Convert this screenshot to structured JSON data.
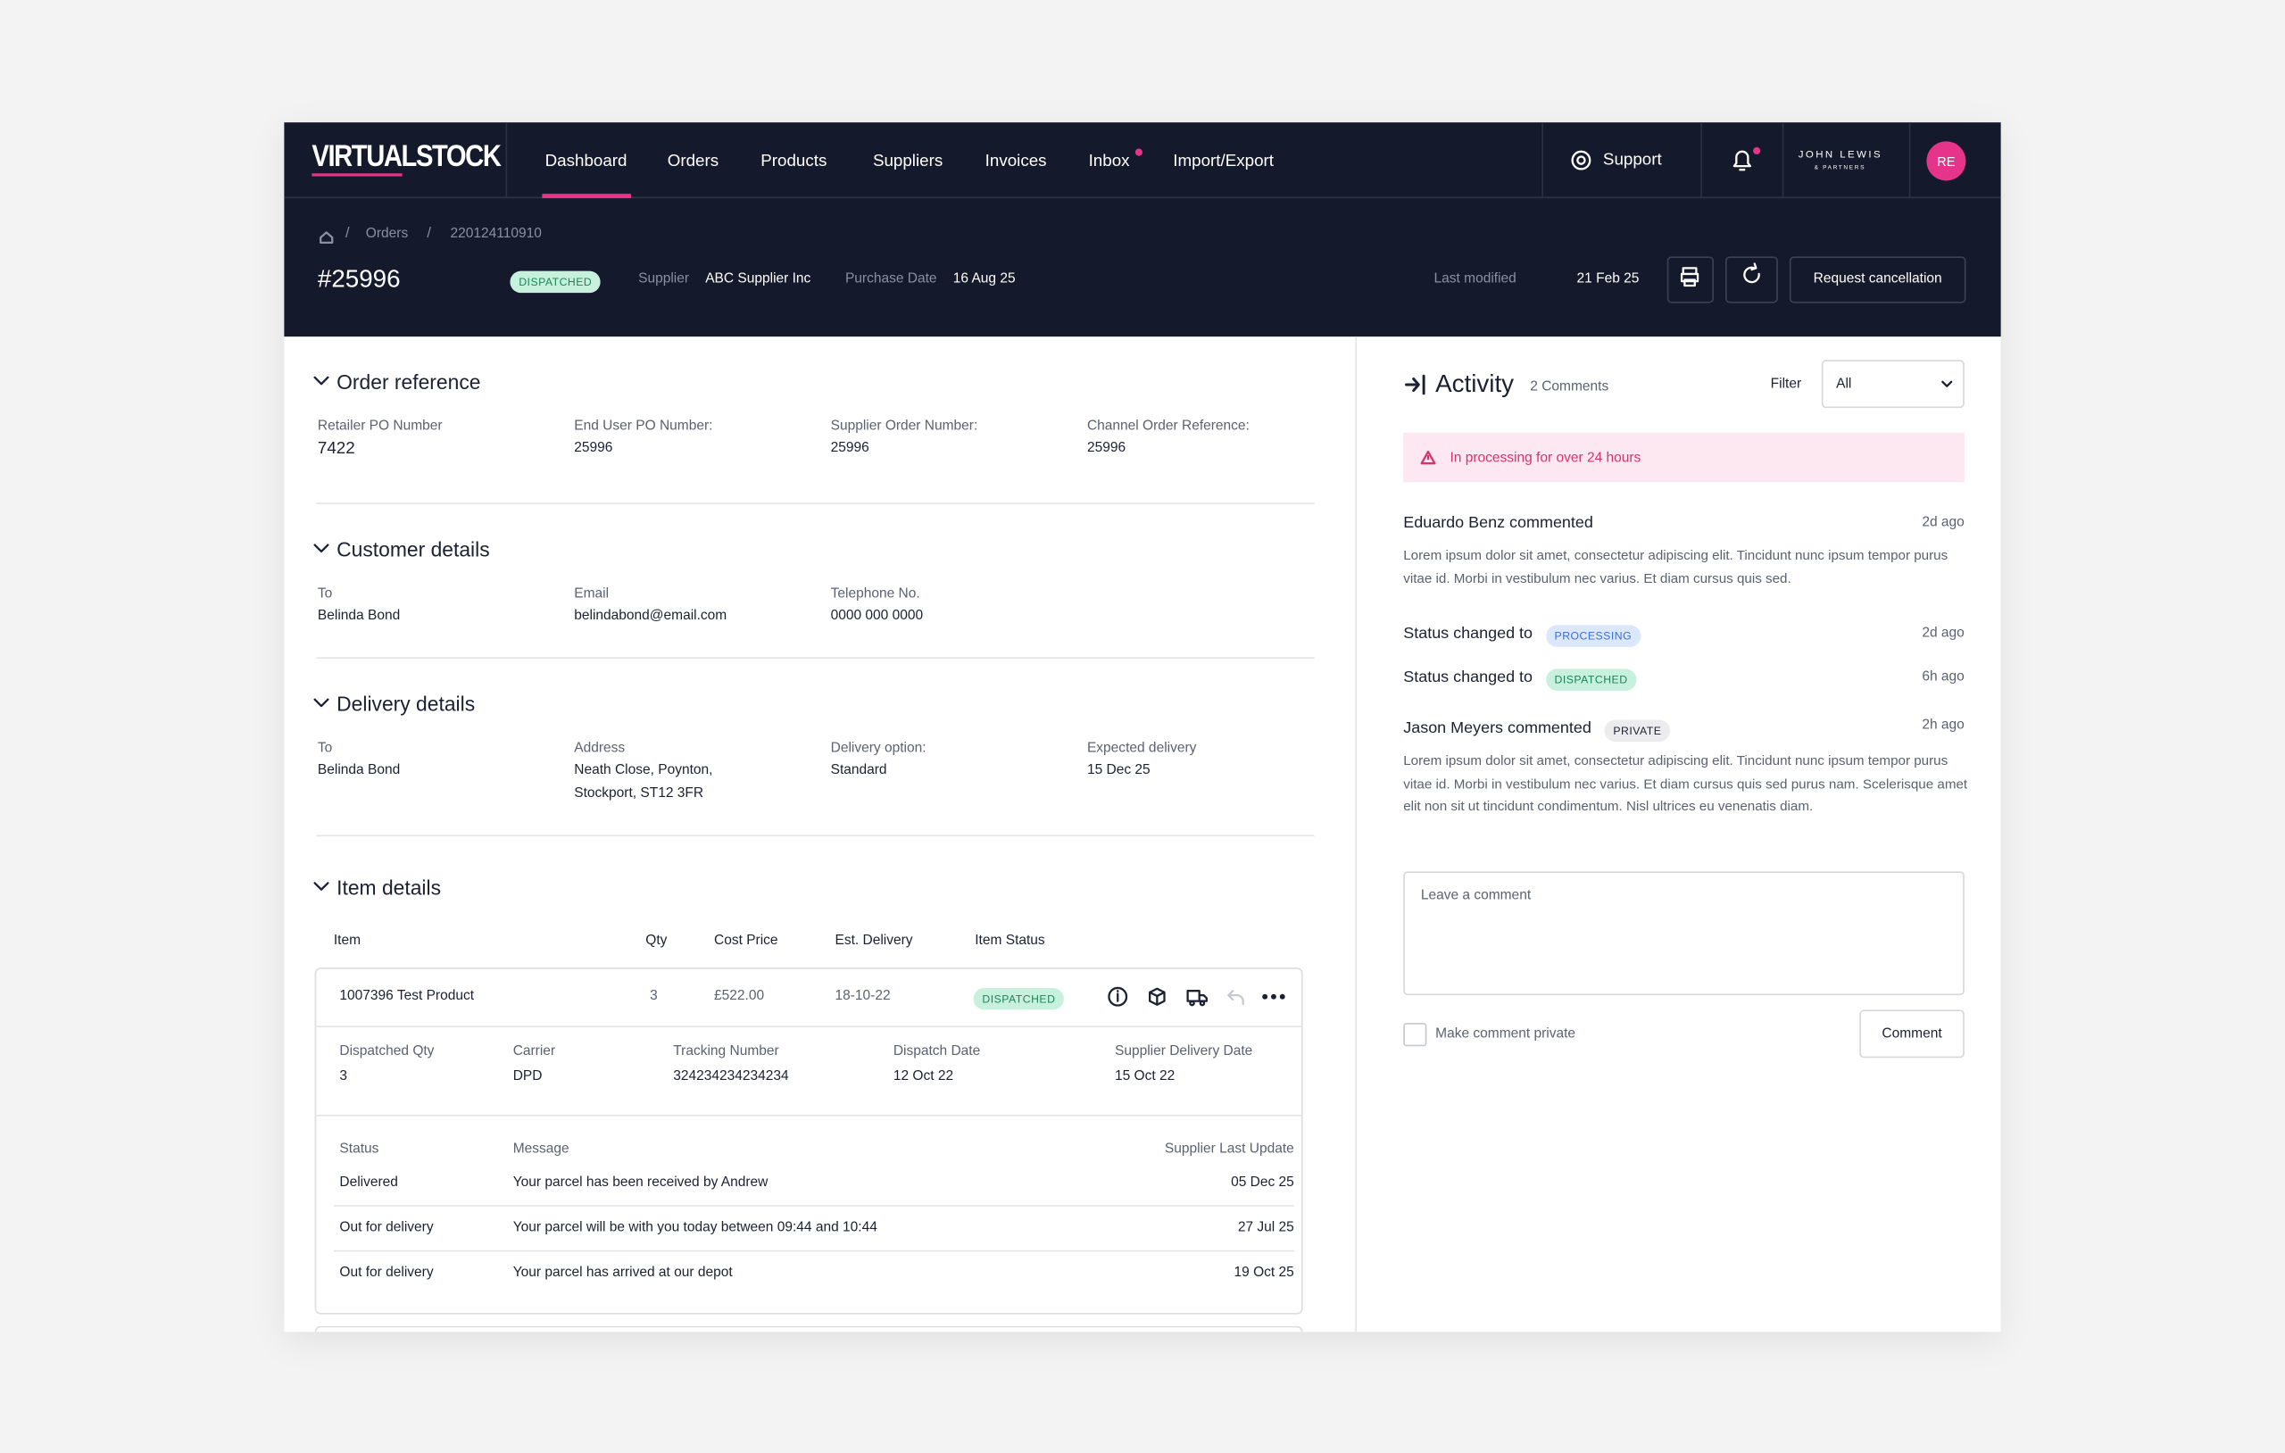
{
  "nav": {
    "logo": "VIRTUALSTOCK",
    "items": [
      "Dashboard",
      "Orders",
      "Products",
      "Suppliers",
      "Invoices",
      "Inbox",
      "Import/Export"
    ],
    "support": "Support",
    "retailer": "JOHN LEWIS",
    "retailer_sub": "& PARTNERS",
    "avatar": "RE"
  },
  "header": {
    "breadcrumb": [
      "Orders",
      "220124110910"
    ],
    "order_id": "#25996",
    "status": "DISPATCHED",
    "supplier_label": "Supplier",
    "supplier": "ABC Supplier Inc",
    "purchase_date_label": "Purchase Date",
    "purchase_date": "16 Aug 25",
    "last_modified_label": "Last modified",
    "last_modified": "21 Feb 25",
    "action": "Request cancellation"
  },
  "sections": [
    {
      "title": "Order reference",
      "fields": [
        {
          "label": "Retailer PO Number",
          "value": "7422"
        },
        {
          "label": "End User PO Number:",
          "value": "25996"
        },
        {
          "label": "Supplier Order Number:",
          "value": "25996"
        },
        {
          "label": "Channel Order Reference:",
          "value": "25996"
        }
      ]
    },
    {
      "title": "Customer details",
      "fields": [
        {
          "label": "To",
          "value": "Belinda Bond"
        },
        {
          "label": "Email",
          "value": "belindabond@email.com"
        },
        {
          "label": "Telephone No.",
          "value": "0000 000 0000"
        }
      ]
    },
    {
      "title": "Delivery details",
      "fields": [
        {
          "label": "To",
          "value": "Belinda Bond"
        },
        {
          "label": "Address",
          "value": "Neath Close, Poynton, Stockport, ST12 3FR"
        },
        {
          "label": "Delivery option:",
          "value": "Standard"
        },
        {
          "label": "Expected delivery",
          "value": "15 Dec 25"
        }
      ]
    }
  ],
  "items": {
    "title": "Item details",
    "columns": [
      "Item",
      "Qty",
      "Cost Price",
      "Est. Delivery",
      "Item Status"
    ],
    "rows": [
      [
        "1007396 Test Product",
        "3",
        "£522.00",
        "18-10-22",
        "DISPATCHED"
      ]
    ],
    "shipment": [
      {
        "label": "Dispatched Qty",
        "value": "3"
      },
      {
        "label": "Carrier",
        "value": "DPD"
      },
      {
        "label": "Tracking Number",
        "value": "324234234234234"
      },
      {
        "label": "Dispatch Date",
        "value": "12 Oct 22"
      },
      {
        "label": "Supplier Delivery Date",
        "value": "15 Oct 22"
      }
    ],
    "tracking_columns": [
      "Status",
      "Message",
      "Supplier Last Update"
    ],
    "tracking": [
      [
        "Delivered",
        "Your parcel has been received by Andrew",
        "05 Dec 25"
      ],
      [
        "Out for delivery",
        "Your parcel will be with you today between 09:44 and 10:44",
        "27 Jul 25"
      ],
      [
        "Out for delivery",
        "Your parcel has arrived at our depot",
        "19 Oct 25"
      ]
    ]
  },
  "activity": {
    "title": "Activity",
    "count": "2 Comments",
    "filter_label": "Filter",
    "filter_value": "All",
    "alert": "In processing for over 24 hours",
    "entries": [
      {
        "heading": "Eduardo Benz commented",
        "time": "2d ago",
        "body": "Lorem ipsum dolor sit amet, consectetur adipiscing elit. Tincidunt nunc ipsum tempor purus vitae id. Morbi in vestibulum nec varius. Et diam cursus quis sed."
      },
      {
        "heading": "Status changed to",
        "badge": "PROCESSING",
        "time": "2d ago"
      },
      {
        "heading": "Status changed to",
        "badge": "DISPATCHED",
        "time": "6h ago"
      },
      {
        "heading": "Jason Meyers commented",
        "badge": "PRIVATE",
        "time": "2h ago",
        "body": "Lorem ipsum dolor sit amet, consectetur adipiscing elit. Tincidunt nunc ipsum tempor purus vitae id. Morbi in vestibulum nec varius. Et diam cursus quis sed purus nam. Scelerisque amet elit non sit ut tincidunt condimentum. Nisl ultrices eu venenatis diam."
      }
    ],
    "placeholder": "Leave a comment",
    "private_label": "Make comment private",
    "submit": "Comment"
  }
}
